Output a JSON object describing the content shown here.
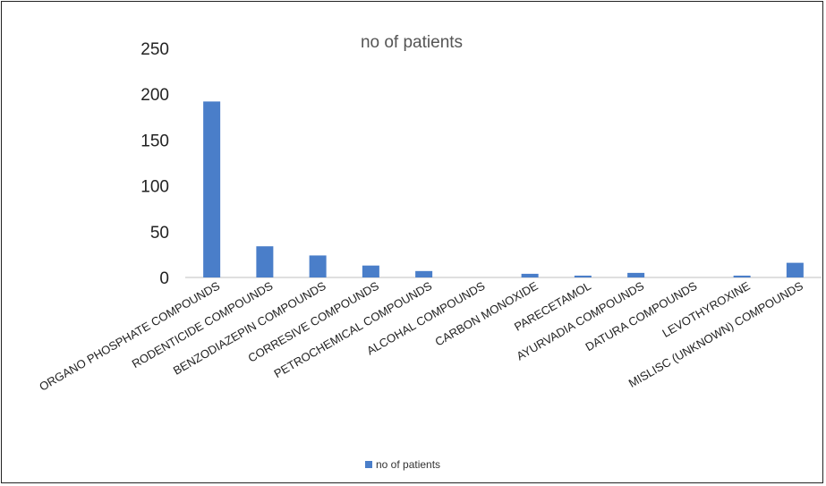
{
  "chart_data": {
    "type": "bar",
    "title": "no of patients",
    "xlabel": "",
    "ylabel": "",
    "ylim": [
      0,
      250
    ],
    "yticks": [
      0,
      50,
      100,
      150,
      200,
      250
    ],
    "grid": false,
    "legend": "bottom",
    "categories": [
      "ORGANO PHOSPHATE COMPOUNDS",
      "RODENTICIDE COMPOUNDS",
      "BENZODIAZEPIN COMPOUNDS",
      "CORRESIVE COMPOUNDS",
      "PETROCHEMICAL COMPOUNDS",
      "ALCOHAL COMPOUNDS",
      "CARBON MONOXIDE",
      "PARECETAMOL",
      "AYURVADIA COMPOUNDS",
      "DATURA COMPOUNDS",
      "LEVOTHYROXINE",
      "MISLISC (UNKNOWN) COMPOUNDS"
    ],
    "series": [
      {
        "name": "no of patients",
        "color": "#4a7ec9",
        "values": [
          192,
          34,
          24,
          13,
          7,
          0,
          4,
          2,
          5,
          0,
          2,
          16
        ]
      }
    ]
  }
}
